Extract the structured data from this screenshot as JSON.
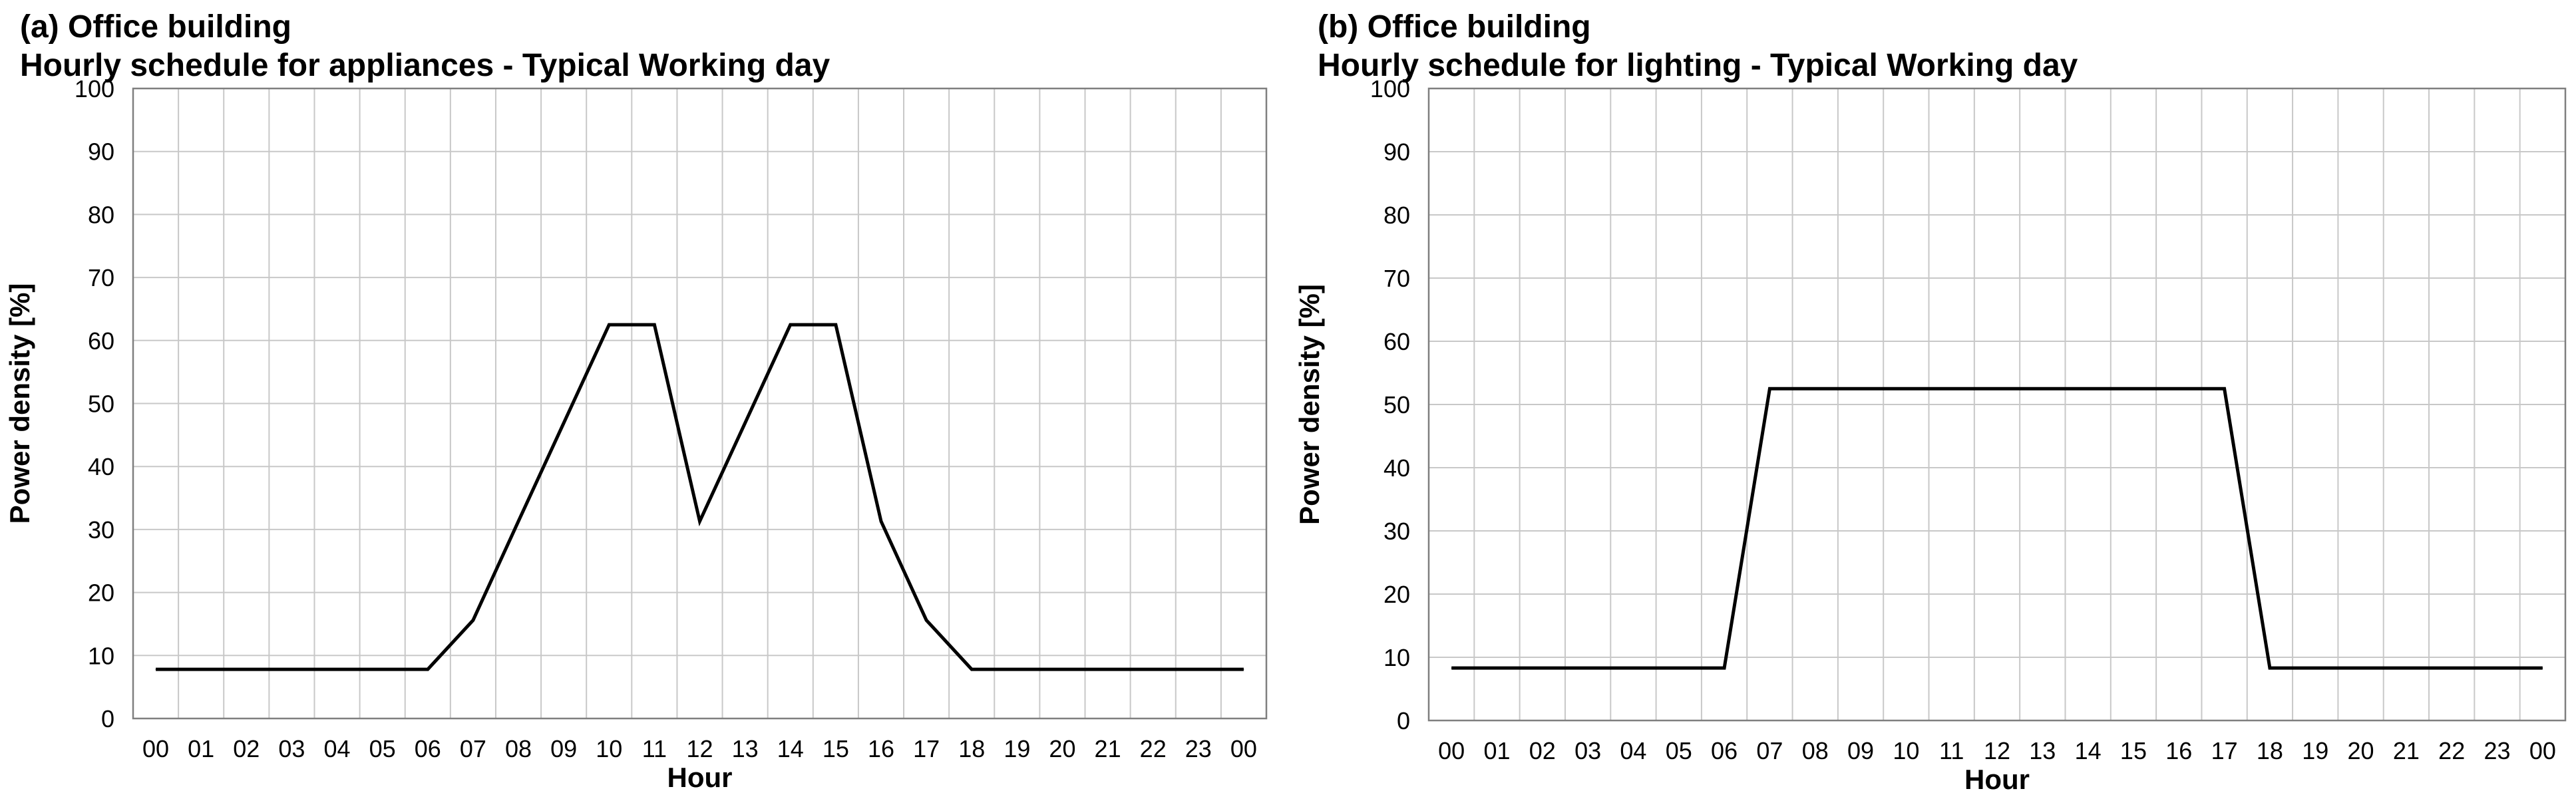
{
  "chart_data": [
    {
      "type": "line",
      "title_line1": "(a) Office building",
      "title_line2": "Hourly schedule for appliances - Typical Working day",
      "xlabel": "Hour",
      "ylabel": "Power density [%]",
      "ylim": [
        0,
        100
      ],
      "yticks": [
        0,
        10,
        20,
        30,
        40,
        50,
        60,
        70,
        80,
        90,
        100
      ],
      "grid": true,
      "categories": [
        "00",
        "01",
        "02",
        "03",
        "04",
        "05",
        "06",
        "07",
        "08",
        "09",
        "10",
        "11",
        "12",
        "13",
        "14",
        "15",
        "16",
        "17",
        "18",
        "19",
        "20",
        "21",
        "22",
        "23",
        "00"
      ],
      "series": [
        {
          "values": [
            7.8,
            7.8,
            7.8,
            7.8,
            7.8,
            7.8,
            7.8,
            15.6,
            31.3,
            46.9,
            62.5,
            62.5,
            31.3,
            46.9,
            62.5,
            62.5,
            31.3,
            15.6,
            7.8,
            7.8,
            7.8,
            7.8,
            7.8,
            7.8,
            7.8
          ]
        }
      ]
    },
    {
      "type": "line",
      "title_line1": "(b) Office building",
      "title_line2": "Hourly schedule for lighting - Typical Working day",
      "xlabel": "Hour",
      "ylabel": "Power density [%]",
      "ylim": [
        0,
        100
      ],
      "yticks": [
        0,
        10,
        20,
        30,
        40,
        50,
        60,
        70,
        80,
        90,
        100
      ],
      "grid": true,
      "categories": [
        "00",
        "01",
        "02",
        "03",
        "04",
        "05",
        "06",
        "07",
        "08",
        "09",
        "10",
        "11",
        "12",
        "13",
        "14",
        "15",
        "16",
        "17",
        "18",
        "19",
        "20",
        "21",
        "22",
        "23",
        "00"
      ],
      "series": [
        {
          "values": [
            8.3,
            8.3,
            8.3,
            8.3,
            8.3,
            8.3,
            8.3,
            52.5,
            52.5,
            52.5,
            52.5,
            52.5,
            52.5,
            52.5,
            52.5,
            52.5,
            52.5,
            52.5,
            8.3,
            8.3,
            8.3,
            8.3,
            8.3,
            8.3,
            8.3
          ]
        }
      ]
    }
  ]
}
